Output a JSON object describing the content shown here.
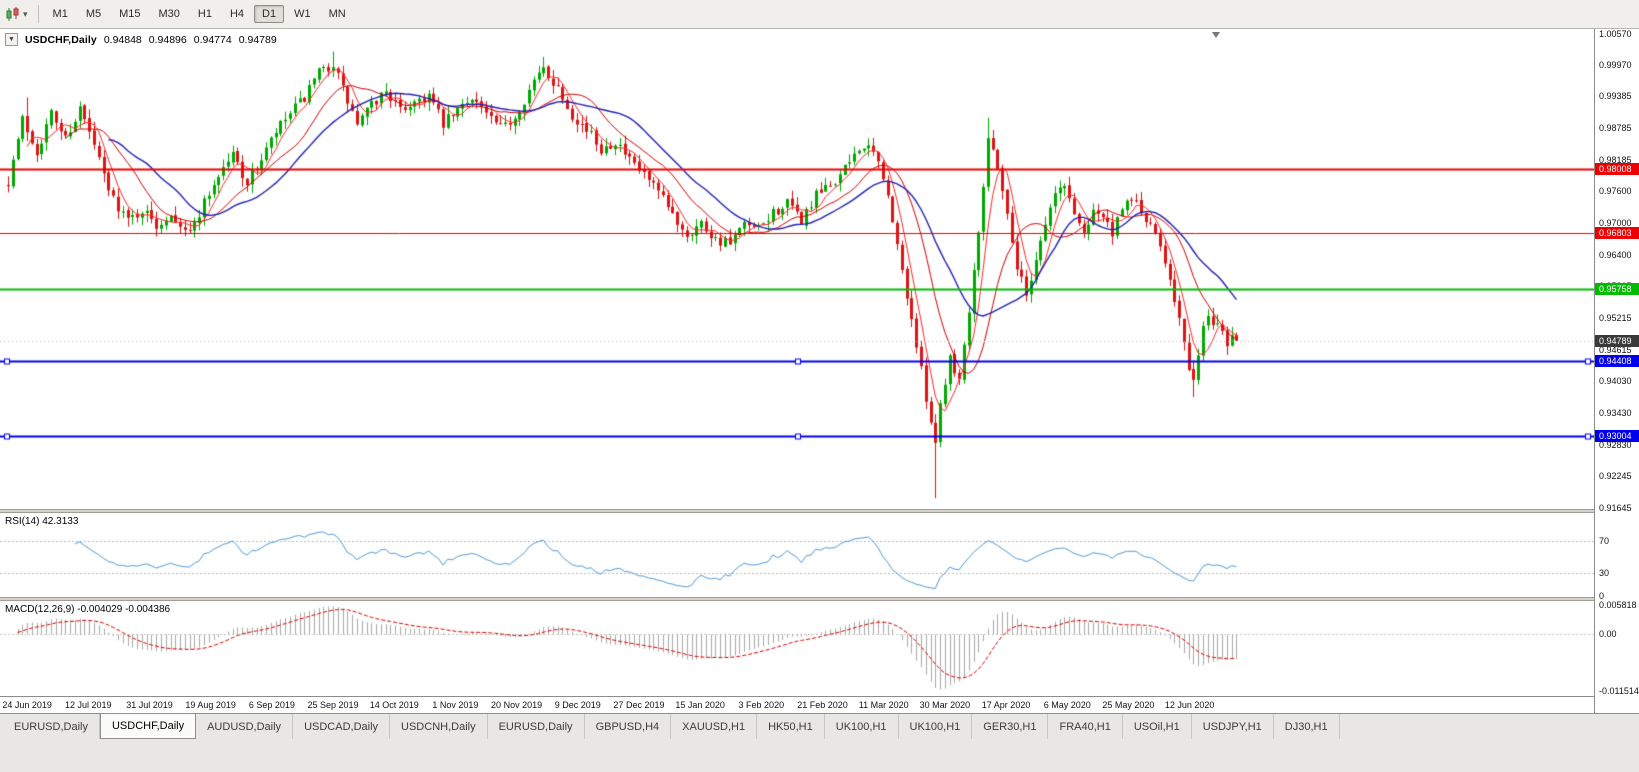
{
  "toolbar": {
    "timeframes": [
      {
        "label": "M1",
        "active": false
      },
      {
        "label": "M5",
        "active": false
      },
      {
        "label": "M15",
        "active": false
      },
      {
        "label": "M30",
        "active": false
      },
      {
        "label": "H1",
        "active": false
      },
      {
        "label": "H4",
        "active": false
      },
      {
        "label": "D1",
        "active": true
      },
      {
        "label": "W1",
        "active": false
      },
      {
        "label": "MN",
        "active": false
      }
    ]
  },
  "icons": {
    "toolbar_chart": "candlestick-chart-icon",
    "toolbar_caret": "dropdown-caret-icon",
    "title_caret": "chart-dropdown-icon",
    "scroll_end": "scroll-to-end-icon"
  },
  "chart": {
    "title_symbol": "USDCHF,Daily",
    "ohlc": {
      "open": "0.94848",
      "high": "0.94896",
      "low": "0.94774",
      "close": "0.94789"
    },
    "price_axis": {
      "labels": [
        "1.00570",
        "0.99970",
        "0.99385",
        "0.98785",
        "0.98185",
        "0.97600",
        "0.97000",
        "0.96400",
        "0.95815",
        "0.95215",
        "0.94615",
        "0.94030",
        "0.93430",
        "0.92830",
        "0.92245",
        "0.91645"
      ]
    },
    "hlines": [
      {
        "price": 0.98008,
        "label": "0.98008",
        "color": "#EE0000",
        "width": 2,
        "selected": false
      },
      {
        "price": 0.96803,
        "label": "0.96803",
        "color": "#EE0000",
        "width": 1,
        "selected": false
      },
      {
        "price": 0.95758,
        "label": "0.95758",
        "color": "#00BB00",
        "width": 2,
        "selected": false
      },
      {
        "price": 0.94408,
        "label": "0.94408",
        "color": "#0000EE",
        "width": 2,
        "selected": true
      },
      {
        "price": 0.93004,
        "label": "0.93004",
        "color": "#0000EE",
        "width": 2,
        "selected": true
      }
    ],
    "current_price": {
      "value": 0.94789,
      "label": "0.94789",
      "tag_color": "#3a3a3a"
    }
  },
  "rsi": {
    "label": "RSI(14) 42.3133",
    "current": 42.3133,
    "levels": [
      "70",
      "30",
      "0"
    ],
    "level_values": [
      70,
      30,
      0
    ],
    "line_color": "#4f9bd9",
    "level_color": "#bcbcbc"
  },
  "macd": {
    "label": "MACD(12,26,9) -0.004029 -0.004386",
    "current_main": -0.004029,
    "current_signal": -0.004386,
    "axis_labels": [
      "0.005818",
      "0.00",
      "-0.011514"
    ],
    "axis_values": [
      0.005818,
      0,
      -0.011514
    ],
    "histogram_color": "#a9a9a9",
    "signal_color": "#e00000"
  },
  "date_axis": {
    "labels": [
      "24 Jun 2019",
      "12 Jul 2019",
      "31 Jul 2019",
      "19 Aug 2019",
      "6 Sep 2019",
      "25 Sep 2019",
      "14 Oct 2019",
      "1 Nov 2019",
      "20 Nov 2019",
      "9 Dec 2019",
      "27 Dec 2019",
      "15 Jan 2020",
      "3 Feb 2020",
      "21 Feb 2020",
      "11 Mar 2020",
      "30 Mar 2020",
      "17 Apr 2020",
      "6 May 2020",
      "25 May 2020",
      "12 Jun 2020"
    ]
  },
  "tabs": [
    {
      "label": "EURUSD,Daily",
      "active": false
    },
    {
      "label": "USDCHF,Daily",
      "active": true
    },
    {
      "label": "AUDUSD,Daily",
      "active": false
    },
    {
      "label": "USDCAD,Daily",
      "active": false
    },
    {
      "label": "USDCNH,Daily",
      "active": false
    },
    {
      "label": "EURUSD,Daily",
      "active": false
    },
    {
      "label": "GBPUSD,H4",
      "active": false
    },
    {
      "label": "XAUUSD,H1",
      "active": false
    },
    {
      "label": "HK50,H1",
      "active": false
    },
    {
      "label": "UK100,H1",
      "active": false
    },
    {
      "label": "UK100,H1",
      "active": false
    },
    {
      "label": "GER30,H1",
      "active": false
    },
    {
      "label": "FRA40,H1",
      "active": false
    },
    {
      "label": "USOil,H1",
      "active": false
    },
    {
      "label": "USDJPY,H1",
      "active": false
    },
    {
      "label": "DJ30,H1",
      "active": false
    }
  ],
  "chart_data": {
    "type": "candlestick",
    "symbol": "USDCHF",
    "timeframe": "Daily",
    "days": 258,
    "seed": 7,
    "y_axis_range": {
      "top": 1.00645,
      "bottom": 0.91625
    },
    "up_color": "#00A800",
    "down_color": "#DC1414",
    "moving_averages": [
      {
        "period": 5,
        "color": "#FF2A2A"
      },
      {
        "period": 13,
        "color": "#D40000"
      },
      {
        "period": 22,
        "color": "#2222B4"
      }
    ],
    "price_path": [
      [
        0,
        0.978
      ],
      [
        3,
        0.9895
      ],
      [
        6,
        0.9835
      ],
      [
        9,
        0.9905
      ],
      [
        12,
        0.986
      ],
      [
        15,
        0.9915
      ],
      [
        18,
        0.9845
      ],
      [
        21,
        0.976
      ],
      [
        25,
        0.9705
      ],
      [
        28,
        0.9725
      ],
      [
        31,
        0.9695
      ],
      [
        34,
        0.972
      ],
      [
        38,
        0.968
      ],
      [
        41,
        0.974
      ],
      [
        44,
        0.979
      ],
      [
        47,
        0.983
      ],
      [
        50,
        0.9775
      ],
      [
        53,
        0.982
      ],
      [
        56,
        0.987
      ],
      [
        59,
        0.9905
      ],
      [
        62,
        0.9935
      ],
      [
        65,
        0.998
      ],
      [
        68,
        1.0
      ],
      [
        70,
        0.995
      ],
      [
        73,
        0.9885
      ],
      [
        76,
        0.992
      ],
      [
        79,
        0.995
      ],
      [
        82,
        0.991
      ],
      [
        85,
        0.993
      ],
      [
        88,
        0.994
      ],
      [
        91,
        0.9885
      ],
      [
        94,
        0.991
      ],
      [
        97,
        0.994
      ],
      [
        100,
        0.9905
      ],
      [
        103,
        0.9875
      ],
      [
        106,
        0.99
      ],
      [
        109,
        0.995
      ],
      [
        112,
        0.999
      ],
      [
        115,
        0.9955
      ],
      [
        118,
        0.9905
      ],
      [
        121,
        0.9875
      ],
      [
        124,
        0.984
      ],
      [
        127,
        0.9855
      ],
      [
        130,
        0.9815
      ],
      [
        133,
        0.979
      ],
      [
        136,
        0.9755
      ],
      [
        139,
        0.9715
      ],
      [
        142,
        0.968
      ],
      [
        145,
        0.97
      ],
      [
        148,
        0.967
      ],
      [
        151,
        0.966
      ],
      [
        154,
        0.9695
      ],
      [
        157,
        0.9685
      ],
      [
        160,
        0.972
      ],
      [
        163,
        0.9735
      ],
      [
        166,
        0.9705
      ],
      [
        169,
        0.975
      ],
      [
        172,
        0.977
      ],
      [
        175,
        0.98
      ],
      [
        178,
        0.9845
      ],
      [
        181,
        0.983
      ],
      [
        183,
        0.979
      ],
      [
        185,
        0.97
      ],
      [
        187,
        0.961
      ],
      [
        189,
        0.952
      ],
      [
        191,
        0.942
      ],
      [
        193,
        0.933
      ],
      [
        194,
        0.929
      ],
      [
        195,
        0.936
      ],
      [
        197,
        0.945
      ],
      [
        199,
        0.9405
      ],
      [
        201,
        0.954
      ],
      [
        203,
        0.969
      ],
      [
        205,
        0.986
      ],
      [
        207,
        0.981
      ],
      [
        209,
        0.9715
      ],
      [
        211,
        0.962
      ],
      [
        213,
        0.9565
      ],
      [
        215,
        0.9635
      ],
      [
        217,
        0.97
      ],
      [
        219,
        0.9755
      ],
      [
        221,
        0.977
      ],
      [
        223,
        0.972
      ],
      [
        225,
        0.968
      ],
      [
        227,
        0.973
      ],
      [
        229,
        0.971
      ],
      [
        231,
        0.968
      ],
      [
        233,
        0.972
      ],
      [
        235,
        0.975
      ],
      [
        237,
        0.972
      ],
      [
        239,
        0.969
      ],
      [
        241,
        0.966
      ],
      [
        243,
        0.96
      ],
      [
        245,
        0.952
      ],
      [
        247,
        0.942
      ],
      [
        248,
        0.9395
      ],
      [
        249,
        0.946
      ],
      [
        250,
        0.9505
      ],
      [
        251,
        0.952
      ],
      [
        252,
        0.951
      ],
      [
        253,
        0.952
      ],
      [
        254,
        0.95
      ],
      [
        255,
        0.9475
      ],
      [
        256,
        0.949
      ],
      [
        257,
        0.94789
      ]
    ],
    "special_wicks": [
      {
        "day": 194,
        "low": 0.9183
      },
      {
        "day": 248,
        "low": 0.9373
      },
      {
        "day": 205,
        "high": 0.9898
      },
      {
        "day": 68,
        "high": 1.0022
      },
      {
        "day": 112,
        "high": 1.0012
      },
      {
        "day": 4,
        "high": 0.9936
      }
    ]
  }
}
